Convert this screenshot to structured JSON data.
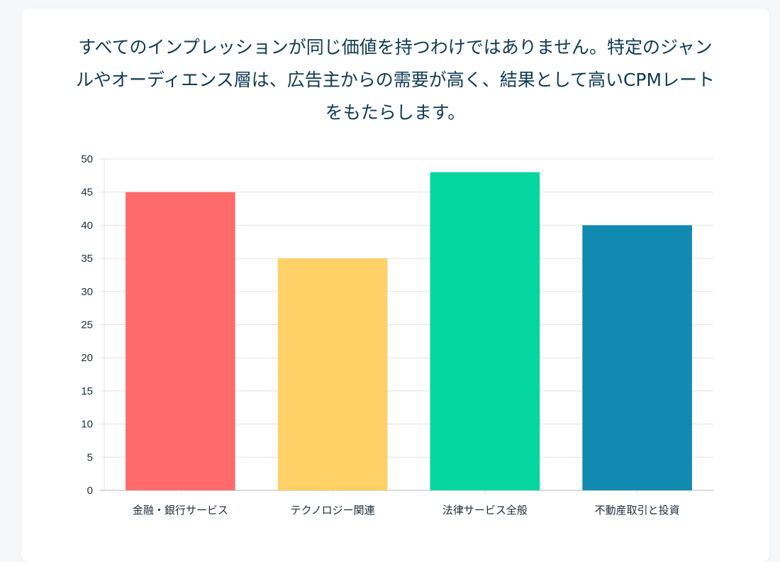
{
  "description": {
    "lines": [
      "すべてのインプレッションが同じ価値を持つわけではありません。特定のジャン",
      "ルやオーディエンス層は、広告主からの需要が高く、結果として高いCPMレート",
      "をもたらします。"
    ]
  },
  "chart_data": {
    "type": "bar",
    "categories": [
      "金融・銀行サービス",
      "テクノロジー関連",
      "法律サービス全般",
      "不動産取引と投資"
    ],
    "values": [
      45,
      35,
      48,
      40
    ],
    "colors": [
      "#ff6b6b",
      "#ffd166",
      "#06d6a0",
      "#118ab2"
    ],
    "title": "",
    "xlabel": "",
    "ylabel": "",
    "ylim": [
      0,
      50
    ],
    "yticks": [
      0,
      5,
      10,
      15,
      20,
      25,
      30,
      35,
      40,
      45,
      50
    ],
    "grid": true,
    "legend": "none"
  }
}
